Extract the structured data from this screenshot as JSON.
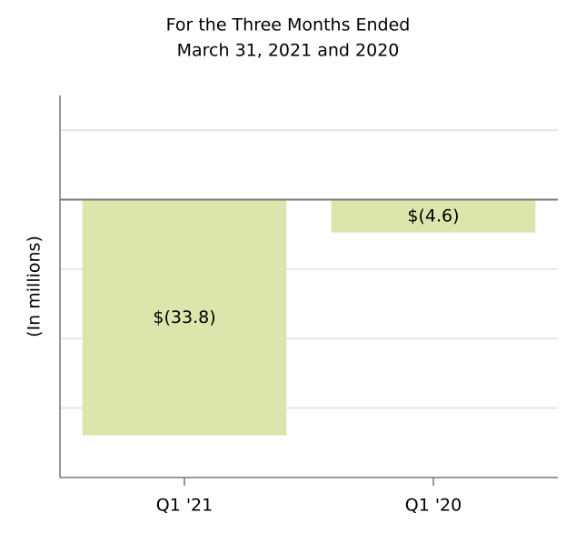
{
  "chart_data": {
    "type": "bar",
    "title": [
      "For the Three Months Ended",
      "March 31, 2021 and 2020"
    ],
    "y_label": "(In millions)",
    "categories": [
      "Q1 '21",
      "Q1 '20"
    ],
    "values": [
      -33.8,
      -4.6
    ],
    "value_labels": [
      "$(33.8)",
      "$(4.6)"
    ],
    "color": "#dce5ab",
    "ylim": [
      -40,
      15
    ],
    "yticks": [
      -30,
      -20,
      -10,
      0,
      10
    ],
    "grid": true
  }
}
